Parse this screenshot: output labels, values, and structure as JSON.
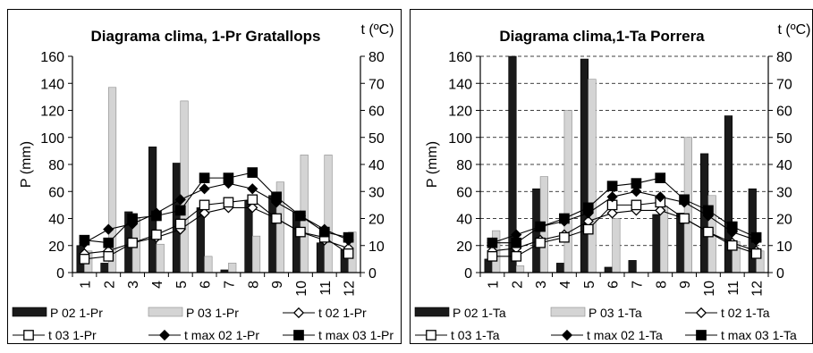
{
  "chart_data": [
    {
      "type": "bar",
      "title": "Diagrama clima, 1-Pr Gratallops",
      "xlabel": "",
      "ylabel": "P (mm)",
      "y2label": "t (ºC)",
      "categories": [
        "1",
        "2",
        "3",
        "4",
        "5",
        "6",
        "7",
        "8",
        "9",
        "10",
        "11",
        "12"
      ],
      "ylim": [
        0,
        160
      ],
      "y2lim": [
        0,
        80
      ],
      "yticks": [
        "0",
        "20",
        "40",
        "60",
        "80",
        "100",
        "120",
        "140",
        "160"
      ],
      "y2ticks": [
        "0",
        "10",
        "20",
        "30",
        "40",
        "50",
        "60",
        "70",
        "80"
      ],
      "grid": false,
      "legend": "bottom",
      "series": [
        {
          "name": "P 02 1-Pr",
          "kind": "bar",
          "style": "dark",
          "axis": "left",
          "values": [
            20,
            7,
            45,
            93,
            81,
            48,
            2,
            53,
            57,
            45,
            22,
            17
          ]
        },
        {
          "name": "P 03 1-Pr",
          "kind": "bar",
          "style": "light",
          "axis": "left",
          "values": [
            16,
            137,
            40,
            21,
            127,
            12,
            7,
            27,
            67,
            87,
            87,
            30
          ]
        },
        {
          "name": "t  02 1-Pr",
          "kind": "line",
          "marker": "diamond-open",
          "axis": "right",
          "values": [
            7,
            8,
            11,
            13,
            16,
            22,
            24,
            24,
            20,
            15,
            12,
            9
          ]
        },
        {
          "name": "t 03 1-Pr",
          "kind": "line",
          "marker": "square-open",
          "axis": "right",
          "values": [
            5,
            6,
            11,
            14,
            18,
            25,
            26,
            27,
            20,
            15,
            13,
            7
          ]
        },
        {
          "name": "t max 02 1-Pr",
          "kind": "line",
          "marker": "diamond-filled",
          "axis": "right",
          "values": [
            11,
            16,
            18,
            22,
            27,
            31,
            33,
            31,
            26,
            21,
            16,
            12
          ]
        },
        {
          "name": "t max 03 1-Pr",
          "kind": "line",
          "marker": "square-filled",
          "axis": "right",
          "values": [
            12,
            11,
            20,
            21,
            23,
            35,
            35,
            37,
            28,
            21,
            15,
            13
          ]
        }
      ]
    },
    {
      "type": "bar",
      "title": "Diagrama clima,1-Ta Porrera",
      "xlabel": "",
      "ylabel": "P (mm)",
      "y2label": "t (ºC)",
      "categories": [
        "1",
        "2",
        "3",
        "4",
        "5",
        "6",
        "7",
        "8",
        "9",
        "10",
        "11",
        "12"
      ],
      "ylim": [
        0,
        160
      ],
      "y2lim": [
        0,
        80
      ],
      "yticks": [
        "0",
        "20",
        "40",
        "60",
        "80",
        "100",
        "120",
        "140",
        "160"
      ],
      "y2ticks": [
        "0",
        "10",
        "20",
        "30",
        "40",
        "50",
        "60",
        "70",
        "80"
      ],
      "grid": true,
      "legend": "bottom",
      "series": [
        {
          "name": "P 02 1-Ta",
          "kind": "bar",
          "style": "dark",
          "axis": "left",
          "values": [
            10,
            160,
            62,
            7,
            158,
            4,
            9,
            43,
            44,
            88,
            116,
            62
          ]
        },
        {
          "name": "P 03 1-Ta",
          "kind": "bar",
          "style": "light",
          "axis": "left",
          "values": [
            31,
            5,
            71,
            120,
            143,
            40,
            0,
            49,
            100,
            57,
            23,
            16
          ]
        },
        {
          "name": "t 02 1-Ta",
          "kind": "line",
          "marker": "diamond-open",
          "axis": "right",
          "values": [
            8,
            9,
            12,
            14,
            19,
            22,
            23,
            23,
            20,
            15,
            11,
            8
          ]
        },
        {
          "name": "t 03 1-Ta",
          "kind": "line",
          "marker": "square-open",
          "axis": "right",
          "values": [
            6,
            6,
            11,
            13,
            16,
            25,
            25,
            26,
            20,
            15,
            10,
            7
          ]
        },
        {
          "name": "t max 02 1-Ta",
          "kind": "line",
          "marker": "diamond-filled",
          "axis": "right",
          "values": [
            11,
            14,
            17,
            19,
            22,
            28,
            30,
            28,
            26,
            21,
            15,
            12
          ]
        },
        {
          "name": "t max 03 1-Ta",
          "kind": "line",
          "marker": "square-filled",
          "axis": "right",
          "values": [
            11,
            11,
            17,
            20,
            24,
            32,
            33,
            35,
            27,
            23,
            17,
            13
          ]
        }
      ]
    }
  ]
}
